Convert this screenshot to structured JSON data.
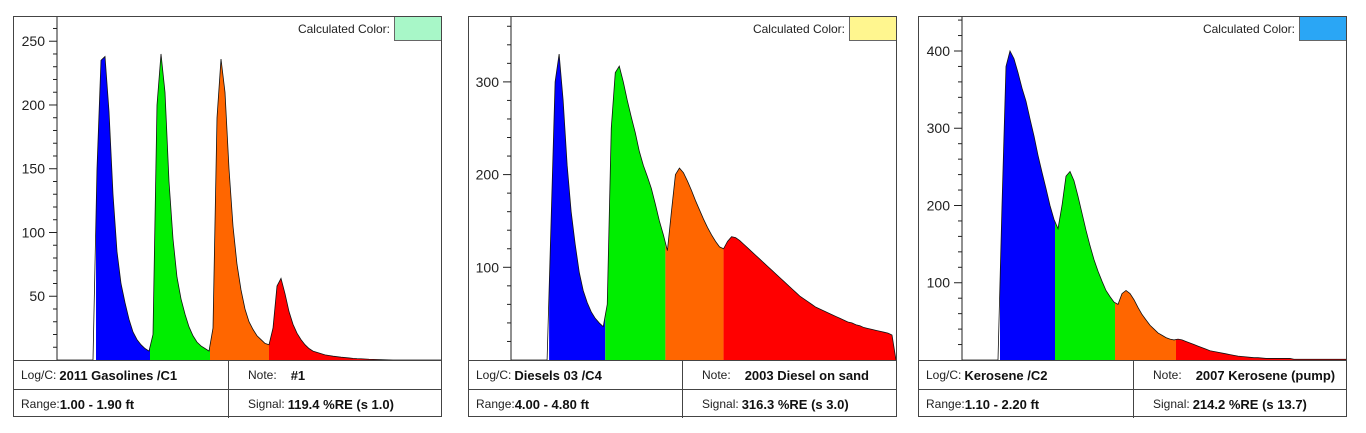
{
  "calculated_color_label": "Calculated Color:",
  "labels": {
    "logc": "Log/C:",
    "note": "Note:",
    "range": "Range:",
    "signal": "Signal:"
  },
  "segment_colors": [
    "#0000ff",
    "#00ee00",
    "#ff6600",
    "#ff0000"
  ],
  "chart_data": [
    {
      "type": "area",
      "calculated_color": "#a8f7c8",
      "logc": "2011 Gasolines /C1",
      "note": "#1",
      "range": "1.00 - 1.90 ft",
      "signal": "119.4 %RE (s 1.0)",
      "ylim": [
        0,
        269
      ],
      "yticks": [
        50,
        100,
        150,
        200,
        250
      ],
      "minor_tick_step": 10,
      "segment_bounds": [
        9.75,
        23.25,
        38.25,
        53,
        96
      ],
      "values": [
        0,
        0,
        0,
        0,
        0,
        0,
        0,
        0,
        0,
        0,
        150,
        235,
        238,
        195,
        130,
        85,
        60,
        45,
        32,
        22,
        16,
        12,
        9,
        7,
        20,
        200,
        240,
        210,
        140,
        95,
        65,
        48,
        36,
        26,
        19,
        14,
        11,
        9,
        7,
        25,
        190,
        236,
        210,
        150,
        105,
        75,
        55,
        40,
        30,
        24,
        19,
        16,
        13,
        12,
        25,
        58,
        64,
        52,
        38,
        28,
        21,
        16,
        12,
        9,
        7,
        6,
        5,
        4,
        3.5,
        3,
        2.6,
        2.2,
        1.9,
        1.6,
        1.3,
        1.1,
        1,
        0.8,
        0.6,
        0.5,
        0.4,
        0.3,
        0.2,
        0.1,
        0,
        0,
        0,
        0,
        0,
        0,
        0,
        0,
        0,
        0,
        0,
        0,
        0
      ]
    },
    {
      "type": "area",
      "calculated_color": "#fff68f",
      "logc": "Diesels 03 /C4",
      "note": "2003 Diesel on sand",
      "range": "4.00 - 4.80 ft",
      "signal": "316.3 %RE (s 3.0)",
      "ylim": [
        0,
        370
      ],
      "yticks": [
        100,
        200,
        300
      ],
      "minor_tick_step": 20,
      "segment_bounds": [
        9.5,
        23.5,
        38.5,
        53,
        96
      ],
      "values": [
        0,
        0,
        0,
        0,
        0,
        0,
        0,
        0,
        0,
        0,
        150,
        300,
        330,
        280,
        210,
        160,
        125,
        95,
        75,
        62,
        52,
        45,
        40,
        36,
        60,
        250,
        310,
        317,
        300,
        280,
        262,
        245,
        225,
        210,
        198,
        185,
        168,
        150,
        135,
        118,
        160,
        200,
        207,
        202,
        193,
        183,
        172,
        162,
        152,
        143,
        135,
        128,
        122,
        120,
        128,
        133,
        132,
        129,
        125,
        121,
        117,
        113,
        109,
        105,
        101,
        97,
        93,
        89,
        85,
        81,
        77,
        73,
        69,
        66,
        63,
        60,
        57,
        55,
        53,
        51,
        49,
        47,
        45,
        43,
        41,
        40,
        38,
        37,
        35,
        34,
        33,
        32,
        31,
        30,
        29,
        27,
        0
      ]
    },
    {
      "type": "area",
      "calculated_color": "#2aa6f5",
      "logc": "Kerosene /C2",
      "note": "2007 Kerosene (pump)",
      "range": "1.10 - 2.20 ft",
      "signal": "214.2 %RE (s 13.7)",
      "ylim": [
        0,
        444
      ],
      "yticks": [
        100,
        200,
        300,
        400
      ],
      "minor_tick_step": 20,
      "segment_bounds": [
        9.5,
        23.25,
        38.25,
        53.5,
        96
      ],
      "values": [
        0,
        0,
        0,
        0,
        0,
        0,
        0,
        0,
        0,
        0,
        200,
        380,
        400,
        390,
        372,
        352,
        335,
        312,
        290,
        265,
        243,
        222,
        200,
        182,
        170,
        200,
        238,
        244,
        232,
        212,
        190,
        168,
        148,
        130,
        115,
        102,
        90,
        82,
        75,
        72,
        86,
        90,
        86,
        78,
        68,
        59,
        52,
        45,
        40,
        35,
        32,
        29,
        27,
        26,
        27,
        26,
        24,
        22,
        20,
        18,
        16,
        14,
        12,
        11,
        10,
        9,
        8,
        7,
        6,
        5,
        4.5,
        4,
        3.5,
        3,
        3,
        2.5,
        2,
        2,
        2,
        2,
        2,
        2,
        2,
        1,
        1,
        1,
        1,
        1,
        1,
        1,
        1,
        1,
        1,
        1,
        1,
        1,
        1
      ]
    }
  ]
}
